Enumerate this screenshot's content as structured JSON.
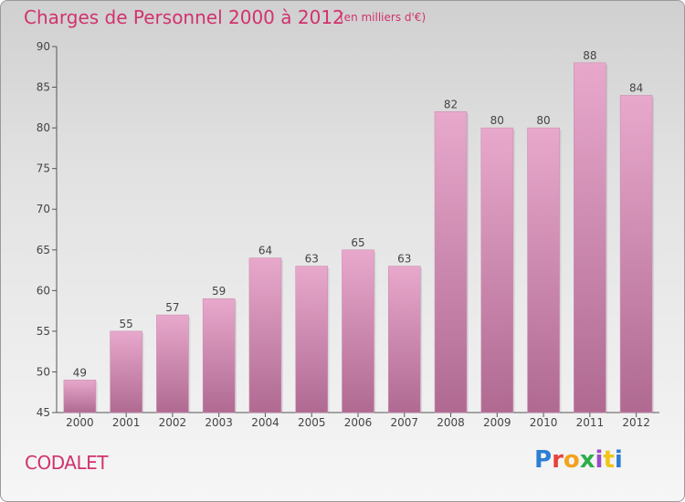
{
  "header": {
    "title": "Charges de Personnel 2000 à 2012",
    "subtitle": "(en milliers d'€)"
  },
  "footer": {
    "place": "CODALET",
    "logo_text": "Proxiti"
  },
  "colors": {
    "title": "#d1326e",
    "bar_top": "#e8a8cc",
    "bar_bottom": "#b06a92"
  },
  "chart_data": {
    "type": "bar",
    "title": "Charges de Personnel 2000 à 2012",
    "subtitle": "(en milliers d'€)",
    "xlabel": "",
    "ylabel": "",
    "categories": [
      "2000",
      "2001",
      "2002",
      "2003",
      "2004",
      "2005",
      "2006",
      "2007",
      "2008",
      "2009",
      "2010",
      "2011",
      "2012"
    ],
    "values": [
      49,
      55,
      57,
      59,
      64,
      63,
      65,
      63,
      82,
      80,
      80,
      88,
      84
    ],
    "ylim": [
      45,
      90
    ],
    "yticks": [
      45,
      50,
      55,
      60,
      65,
      70,
      75,
      80,
      85,
      90
    ],
    "grid": false,
    "legend": "none"
  }
}
